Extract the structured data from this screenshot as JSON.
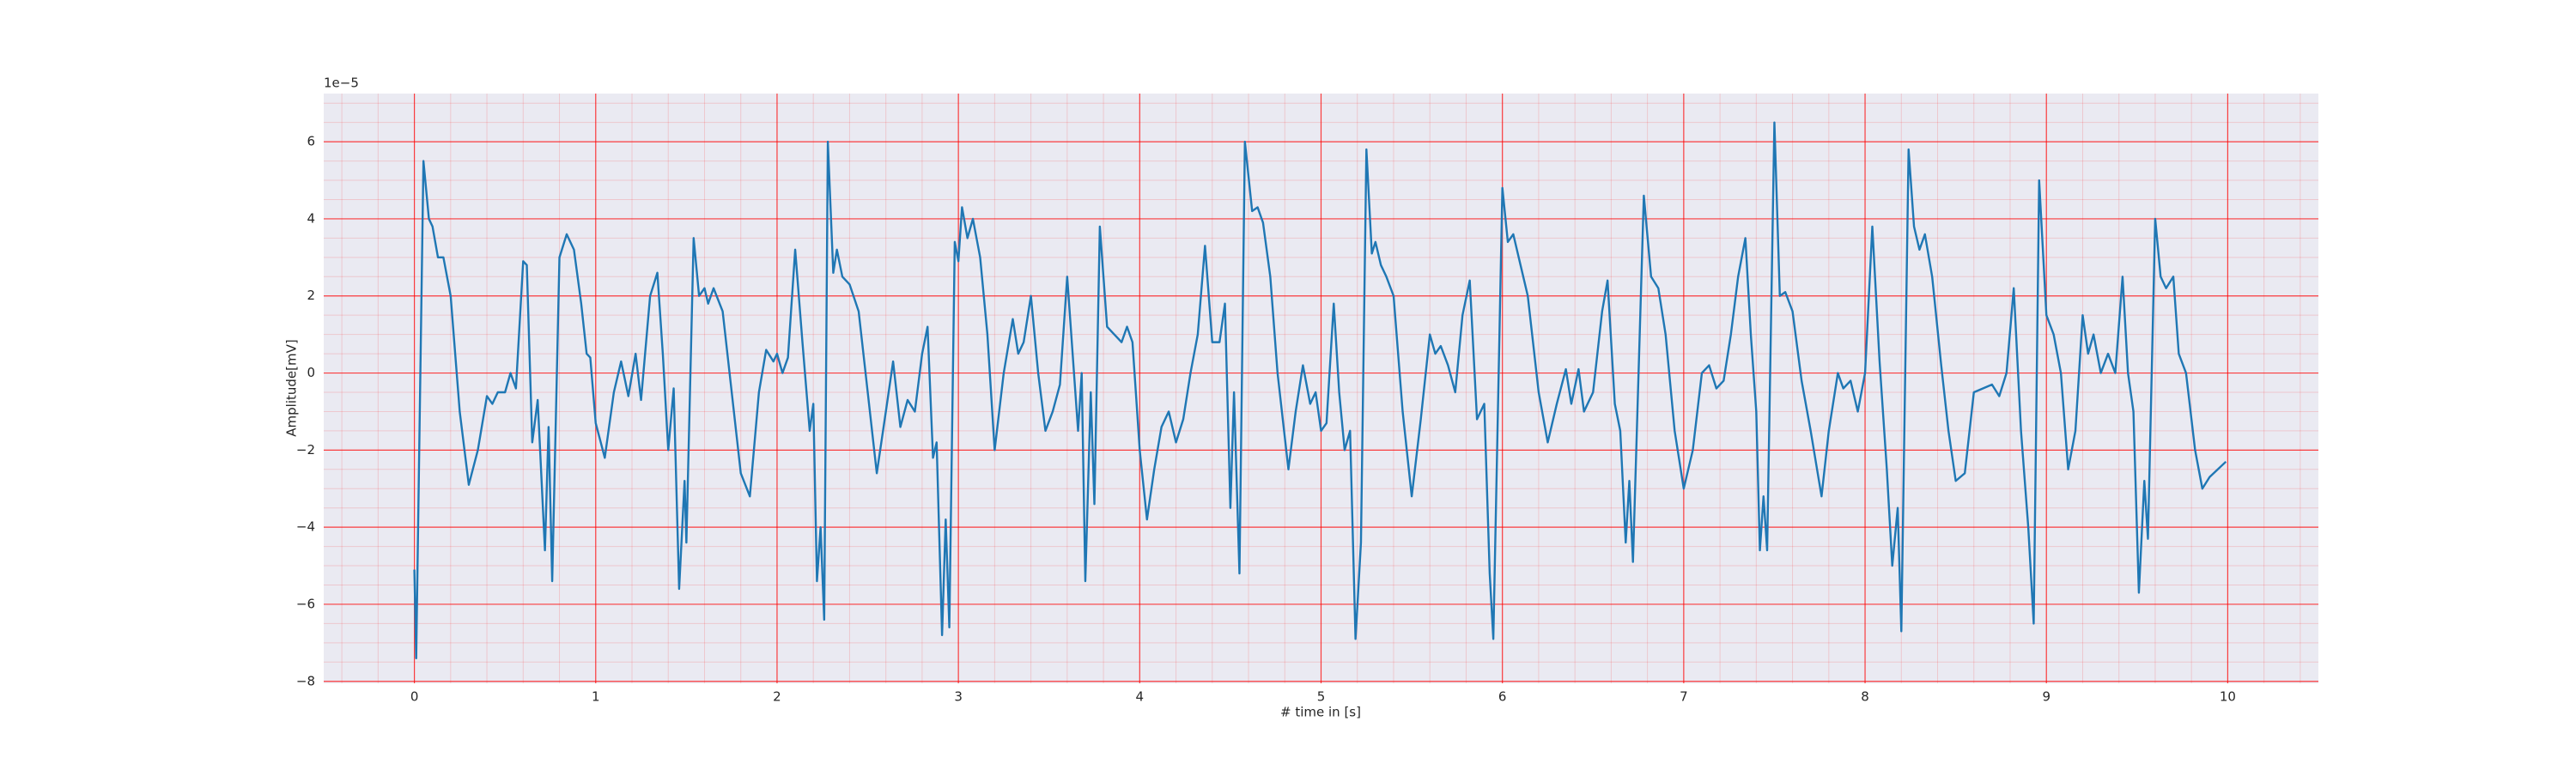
{
  "chart_data": {
    "type": "line",
    "xlabel": "# time in [s]",
    "ylabel": "Amplitude[mV]",
    "offset_text": "1e−5",
    "x": [
      0,
      0.01,
      0.05,
      0.08,
      0.1,
      0.13,
      0.16,
      0.2,
      0.25,
      0.3,
      0.35,
      0.4,
      0.43,
      0.46,
      0.5,
      0.53,
      0.56,
      0.6,
      0.62,
      0.65,
      0.68,
      0.72,
      0.74,
      0.76,
      0.8,
      0.84,
      0.88,
      0.92,
      0.95,
      0.97,
      1.0,
      1.05,
      1.1,
      1.14,
      1.18,
      1.22,
      1.25,
      1.3,
      1.34,
      1.37,
      1.4,
      1.43,
      1.46,
      1.49,
      1.5,
      1.54,
      1.57,
      1.6,
      1.62,
      1.65,
      1.7,
      1.75,
      1.8,
      1.85,
      1.9,
      1.94,
      1.98,
      2.0,
      2.03,
      2.06,
      2.1,
      2.14,
      2.18,
      2.2,
      2.22,
      2.24,
      2.26,
      2.28,
      2.31,
      2.33,
      2.36,
      2.4,
      2.45,
      2.5,
      2.55,
      2.6,
      2.64,
      2.68,
      2.72,
      2.76,
      2.8,
      2.83,
      2.86,
      2.88,
      2.91,
      2.93,
      2.95,
      2.98,
      3.0,
      3.02,
      3.05,
      3.08,
      3.12,
      3.16,
      3.2,
      3.25,
      3.3,
      3.33,
      3.36,
      3.4,
      3.44,
      3.48,
      3.52,
      3.56,
      3.6,
      3.63,
      3.66,
      3.68,
      3.7,
      3.73,
      3.75,
      3.78,
      3.82,
      3.86,
      3.9,
      3.93,
      3.96,
      4.0,
      4.04,
      4.08,
      4.12,
      4.16,
      4.2,
      4.24,
      4.28,
      4.32,
      4.36,
      4.4,
      4.44,
      4.47,
      4.5,
      4.52,
      4.55,
      4.58,
      4.62,
      4.65,
      4.68,
      4.72,
      4.76,
      4.82,
      4.86,
      4.9,
      4.94,
      4.97,
      5.0,
      5.03,
      5.07,
      5.1,
      5.13,
      5.16,
      5.19,
      5.22,
      5.25,
      5.28,
      5.3,
      5.33,
      5.36,
      5.4,
      5.45,
      5.5,
      5.55,
      5.6,
      5.63,
      5.66,
      5.7,
      5.74,
      5.78,
      5.82,
      5.86,
      5.9,
      5.93,
      5.95,
      6.0,
      6.03,
      6.06,
      6.1,
      6.14,
      6.2,
      6.25,
      6.3,
      6.35,
      6.38,
      6.42,
      6.45,
      6.5,
      6.55,
      6.58,
      6.62,
      6.65,
      6.68,
      6.7,
      6.72,
      6.78,
      6.82,
      6.86,
      6.9,
      6.95,
      7.0,
      7.05,
      7.1,
      7.14,
      7.18,
      7.22,
      7.26,
      7.3,
      7.34,
      7.37,
      7.4,
      7.42,
      7.44,
      7.46,
      7.5,
      7.53,
      7.56,
      7.6,
      7.65,
      7.7,
      7.76,
      7.8,
      7.85,
      7.88,
      7.92,
      7.96,
      8.0,
      8.04,
      8.08,
      8.12,
      8.15,
      8.18,
      8.2,
      8.24,
      8.27,
      8.3,
      8.33,
      8.37,
      8.42,
      8.46,
      8.5,
      8.55,
      8.6,
      8.65,
      8.7,
      8.74,
      8.78,
      8.82,
      8.86,
      8.9,
      8.93,
      8.96,
      9.0,
      9.04,
      9.08,
      9.12,
      9.16,
      9.2,
      9.23,
      9.26,
      9.3,
      9.34,
      9.38,
      9.42,
      9.45,
      9.48,
      9.51,
      9.54,
      9.56,
      9.6,
      9.63,
      9.66,
      9.7,
      9.73,
      9.77,
      9.82,
      9.86,
      9.9,
      9.99
    ],
    "series": [
      {
        "color": "#1f77b4",
        "values": [
          -5.1,
          -7.4,
          5.5,
          4.0,
          3.8,
          3.0,
          3.0,
          2.0,
          -1.0,
          -2.9,
          -2.0,
          -0.6,
          -0.8,
          -0.5,
          -0.5,
          0.0,
          -0.4,
          2.9,
          2.8,
          -1.8,
          -0.7,
          -4.6,
          -1.4,
          -5.4,
          3.0,
          3.6,
          3.2,
          1.8,
          0.5,
          0.4,
          -1.3,
          -2.2,
          -0.5,
          0.3,
          -0.6,
          0.5,
          -0.7,
          2.0,
          2.6,
          0.5,
          -2.0,
          -0.4,
          -5.6,
          -2.8,
          -4.4,
          3.5,
          2.0,
          2.2,
          1.8,
          2.2,
          1.6,
          -0.5,
          -2.6,
          -3.2,
          -0.5,
          0.6,
          0.3,
          0.5,
          0.0,
          0.4,
          3.2,
          0.8,
          -1.5,
          -0.8,
          -5.4,
          -4.0,
          -6.4,
          6.0,
          2.6,
          3.2,
          2.5,
          2.3,
          1.6,
          -0.5,
          -2.6,
          -1.0,
          0.3,
          -1.4,
          -0.7,
          -1.0,
          0.5,
          1.2,
          -2.2,
          -1.8,
          -6.8,
          -3.8,
          -6.6,
          3.4,
          2.9,
          4.3,
          3.5,
          4.0,
          3.0,
          1.0,
          -2.0,
          0.0,
          1.4,
          0.5,
          0.8,
          2.0,
          0.0,
          -1.5,
          -1.0,
          -0.3,
          2.5,
          0.5,
          -1.5,
          0.0,
          -5.4,
          -0.5,
          -3.4,
          3.8,
          1.2,
          1.0,
          0.8,
          1.2,
          0.8,
          -2.0,
          -3.8,
          -2.5,
          -1.4,
          -1.0,
          -1.8,
          -1.2,
          0.0,
          1.0,
          3.3,
          0.8,
          0.8,
          1.8,
          -3.5,
          -0.5,
          -5.2,
          6.0,
          4.2,
          4.3,
          3.9,
          2.5,
          0.0,
          -2.5,
          -1.0,
          0.2,
          -0.8,
          -0.5,
          -1.5,
          -1.3,
          1.8,
          -0.5,
          -2.0,
          -1.5,
          -6.9,
          -4.4,
          5.8,
          3.1,
          3.4,
          2.8,
          2.5,
          2.0,
          -1.0,
          -3.2,
          -1.2,
          1.0,
          0.5,
          0.7,
          0.2,
          -0.5,
          1.5,
          2.4,
          -1.2,
          -0.8,
          -5.2,
          -6.9,
          4.8,
          3.4,
          3.6,
          2.8,
          2.0,
          -0.5,
          -1.8,
          -0.8,
          0.1,
          -0.8,
          0.1,
          -1.0,
          -0.5,
          1.6,
          2.4,
          -0.8,
          -1.5,
          -4.4,
          -2.8,
          -4.9,
          4.6,
          2.5,
          2.2,
          1.0,
          -1.5,
          -3.0,
          -2.0,
          0.0,
          0.2,
          -0.4,
          -0.2,
          1.0,
          2.5,
          3.5,
          1.0,
          -1.0,
          -4.6,
          -3.2,
          -4.6,
          6.5,
          2.0,
          2.1,
          1.6,
          -0.2,
          -1.5,
          -3.2,
          -1.5,
          0.0,
          -0.4,
          -0.2,
          -1.0,
          0.0,
          3.8,
          0.3,
          -2.5,
          -5.0,
          -3.5,
          -6.7,
          5.8,
          3.8,
          3.2,
          3.6,
          2.5,
          0.2,
          -1.5,
          -2.8,
          -2.6,
          -0.5,
          -0.4,
          -0.3,
          -0.6,
          0.0,
          2.2,
          -1.5,
          -4.0,
          -6.5,
          5.0,
          1.5,
          1.0,
          0.0,
          -2.5,
          -1.5,
          1.5,
          0.5,
          1.0,
          0.0,
          0.5,
          0.0,
          2.5,
          0.0,
          -1.0,
          -5.7,
          -2.8,
          -4.3,
          4.0,
          2.5,
          2.2,
          2.5,
          0.5,
          0.0,
          -2.0,
          -3.0,
          -2.7,
          -2.3
        ]
      }
    ],
    "xlim": [
      -0.5,
      10.5
    ],
    "ylim": [
      -8.05,
      7.25
    ],
    "xticks": [
      0,
      1,
      2,
      3,
      4,
      5,
      6,
      7,
      8,
      9,
      10
    ],
    "yticks": [
      {
        "value": -8,
        "label": "−8"
      },
      {
        "value": -6,
        "label": "−6"
      },
      {
        "value": -4,
        "label": "−4"
      },
      {
        "value": -2,
        "label": "−2"
      },
      0,
      2,
      4,
      6
    ],
    "grid": true,
    "grid_color": "#ff0000",
    "minor_grid": {
      "x_step": 0.2,
      "y_step": 0.5
    },
    "background": "#eaeaf2"
  }
}
